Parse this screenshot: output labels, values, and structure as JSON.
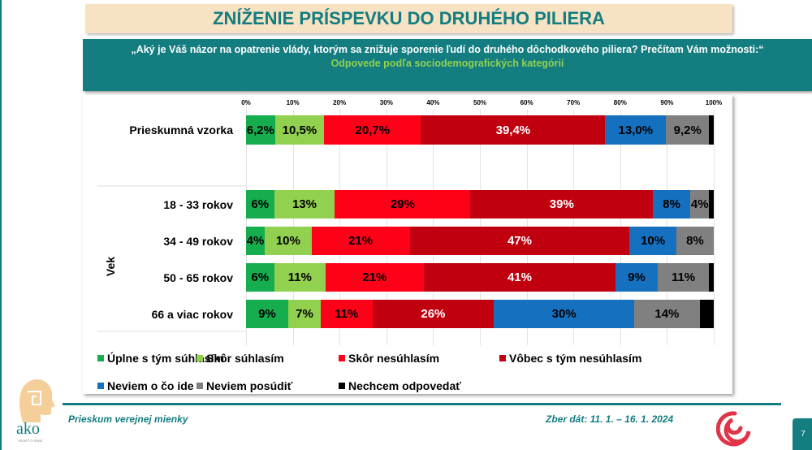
{
  "title": "ZNÍŽENIE PRÍSPEVKU DO DRUHÉHO PILIERA",
  "question": "„Aký je Váš názor na opatrenie vlády, ktorým sa znižuje sporenie ľudí do druhého dôchodkového piliera? Prečítam Vám možnosti:“",
  "subtitle": "Odpovede podľa sociodemografických kategórií",
  "group_label": "Vek",
  "footer": {
    "left": "Prieskum verejnej mienky",
    "right": "Zber dát: 11. 1. – 16. 1. 2024",
    "page": "7",
    "logo_text": "ako",
    "logo_tagline": "VEDIEŤ O SEBE"
  },
  "chart_data": {
    "type": "bar",
    "orientation": "horizontal",
    "stacked": true,
    "xlim": [
      0,
      100
    ],
    "ticks": [
      "0%",
      "10%",
      "20%",
      "30%",
      "40%",
      "50%",
      "60%",
      "70%",
      "80%",
      "90%",
      "100%"
    ],
    "categories": [
      "Prieskumná vzorka",
      "18 - 33 rokov",
      "34 - 49 rokov",
      "50 - 65 rokov",
      "66 a viac rokov"
    ],
    "series": [
      {
        "name": "Úplne s tým súhlasím",
        "color": "#16ad4f",
        "label_color": "#000",
        "values": [
          6.2,
          6,
          4,
          6,
          9
        ],
        "labels": [
          "6,2%",
          "6%",
          "4%",
          "6%",
          "9%"
        ]
      },
      {
        "name": "Skôr súhlasím",
        "color": "#92d050",
        "label_color": "#000",
        "values": [
          10.5,
          13,
          10,
          11,
          7
        ],
        "labels": [
          "10,5%",
          "13%",
          "10%",
          "11%",
          "7%"
        ]
      },
      {
        "name": "Skôr nesúhlasím",
        "color": "#ff0019",
        "label_color": "#000",
        "values": [
          20.7,
          29,
          21,
          21,
          11
        ],
        "labels": [
          "20,7%",
          "29%",
          "21%",
          "21%",
          "11%"
        ]
      },
      {
        "name": "Vôbec s tým nesúhlasím",
        "color": "#c0000f",
        "label_color": "#fff",
        "values": [
          39.4,
          39,
          47,
          41,
          26
        ],
        "labels": [
          "39,4%",
          "39%",
          "47%",
          "41%",
          "26%"
        ]
      },
      {
        "name": "Neviem o čo ide",
        "color": "#1570c0",
        "label_color": "#000",
        "values": [
          13.0,
          8,
          10,
          9,
          30
        ],
        "labels": [
          "13,0%",
          "8%",
          "10%",
          "9%",
          "30%"
        ]
      },
      {
        "name": "Neviem posúdiť",
        "color": "#808080",
        "label_color": "#000",
        "values": [
          9.2,
          4,
          8,
          11,
          14
        ],
        "labels": [
          "9,2%",
          "4%",
          "8%",
          "11%",
          "14%"
        ]
      },
      {
        "name": "Nechcem odpovedať",
        "color": "#000000",
        "label_color": "#fff",
        "values": [
          1.0,
          1,
          0,
          1,
          3
        ],
        "labels": [
          "",
          "",
          "",
          "",
          ""
        ]
      }
    ]
  }
}
